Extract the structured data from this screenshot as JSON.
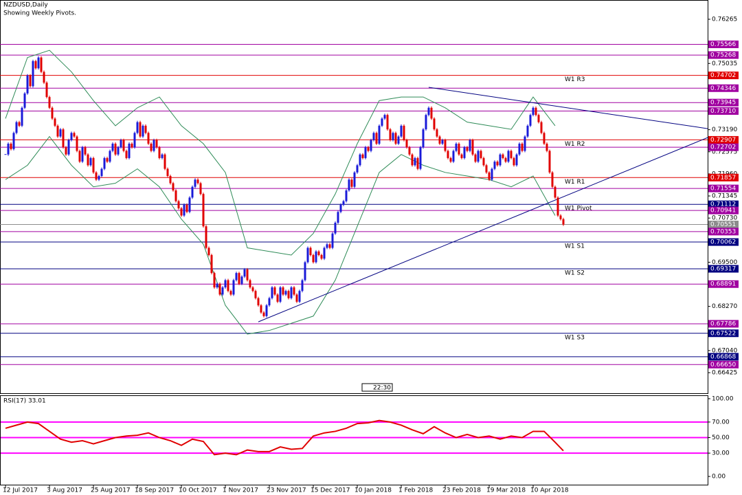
{
  "chart_data": [
    {
      "type": "candlestick",
      "title": "NZDUSD,Daily",
      "subtitle": "Showing Weekly Pivots.",
      "categories": [
        "12 Jul 2017",
        null,
        null,
        null,
        null,
        null,
        null,
        null,
        null,
        null,
        null,
        null,
        null,
        null,
        null,
        null,
        "3 Aug 2017",
        null,
        null,
        null,
        null,
        null,
        null,
        null,
        null,
        null,
        null,
        null,
        null,
        null,
        null,
        null,
        "25 Aug 2017",
        null,
        null,
        null,
        null,
        null,
        null,
        null,
        null,
        null,
        null,
        null,
        null,
        null,
        null,
        null,
        "18 Sep 2017",
        null,
        null,
        null,
        null,
        null,
        null,
        null,
        null,
        null,
        null,
        null,
        null,
        null,
        null,
        null,
        "10 Oct 2017",
        null,
        null,
        null,
        null,
        null,
        null,
        null,
        null,
        null,
        null,
        null,
        null,
        null,
        null,
        null,
        "1 Nov 2017",
        null,
        null,
        null,
        null,
        null,
        null,
        null,
        null,
        null,
        null,
        null,
        null,
        null,
        null,
        null,
        "23 Nov 2017",
        null,
        null,
        null,
        null,
        null,
        null,
        null,
        null,
        null,
        null,
        null,
        null,
        null,
        null,
        null,
        "15 Dec 2017",
        null,
        null,
        null,
        null,
        null,
        null,
        null,
        null,
        null,
        null,
        null,
        null,
        null,
        null,
        null,
        "10 Jan 2018",
        null,
        null,
        null,
        null,
        null,
        null,
        null,
        null,
        null,
        null,
        null,
        null,
        null,
        null,
        null,
        "1 Feb 2018",
        null,
        null,
        null,
        null,
        null,
        null,
        null,
        null,
        null,
        null,
        null,
        null,
        null,
        null,
        null,
        "23 Feb 2018",
        null,
        null,
        null,
        null,
        null,
        null,
        null,
        null,
        null,
        null,
        null,
        null,
        null,
        null,
        null,
        "19 Mar 2018",
        null,
        null,
        null,
        null,
        null,
        null,
        null,
        null,
        null,
        null,
        null,
        null,
        null,
        null,
        null,
        "10 Apr 2018",
        null,
        null,
        null,
        null,
        null,
        null,
        null,
        null,
        null,
        null,
        null
      ],
      "values": [
        0.725,
        0.728,
        0.7265,
        0.731,
        0.734,
        0.733,
        0.738,
        0.742,
        0.747,
        0.744,
        0.751,
        0.749,
        0.752,
        0.748,
        0.745,
        0.741,
        0.738,
        0.735,
        0.733,
        0.73,
        0.732,
        0.727,
        0.725,
        0.729,
        0.731,
        0.73,
        0.726,
        0.723,
        0.727,
        0.725,
        0.722,
        0.724,
        0.72,
        0.718,
        0.719,
        0.721,
        0.724,
        0.723,
        0.726,
        0.728,
        0.725,
        0.727,
        0.729,
        0.726,
        0.724,
        0.728,
        0.727,
        0.731,
        0.734,
        0.73,
        0.733,
        0.731,
        0.728,
        0.726,
        0.729,
        0.727,
        0.724,
        0.725,
        0.721,
        0.719,
        0.717,
        0.715,
        0.712,
        0.71,
        0.708,
        0.711,
        0.709,
        0.713,
        0.716,
        0.718,
        0.717,
        0.714,
        0.705,
        0.699,
        0.697,
        0.692,
        0.688,
        0.689,
        0.686,
        0.688,
        0.69,
        0.687,
        0.686,
        0.69,
        0.692,
        0.689,
        0.691,
        0.693,
        0.69,
        0.688,
        0.687,
        0.685,
        0.683,
        0.681,
        0.68,
        0.683,
        0.685,
        0.688,
        0.686,
        0.684,
        0.688,
        0.686,
        0.687,
        0.685,
        0.688,
        0.686,
        0.684,
        0.687,
        0.69,
        0.695,
        0.699,
        0.697,
        0.695,
        0.698,
        0.697,
        0.696,
        0.699,
        0.7,
        0.699,
        0.703,
        0.706,
        0.709,
        0.711,
        0.712,
        0.715,
        0.718,
        0.716,
        0.72,
        0.722,
        0.725,
        0.724,
        0.727,
        0.726,
        0.729,
        0.731,
        0.728,
        0.733,
        0.735,
        0.736,
        0.732,
        0.729,
        0.731,
        0.728,
        0.73,
        0.733,
        0.729,
        0.727,
        0.725,
        0.722,
        0.724,
        0.721,
        0.727,
        0.732,
        0.736,
        0.738,
        0.735,
        0.732,
        0.73,
        0.728,
        0.729,
        0.726,
        0.724,
        0.723,
        0.726,
        0.728,
        0.725,
        0.724,
        0.727,
        0.726,
        0.729,
        0.725,
        0.723,
        0.726,
        0.724,
        0.722,
        0.72,
        0.718,
        0.721,
        0.723,
        0.722,
        0.725,
        0.724,
        0.723,
        0.726,
        0.724,
        0.722,
        0.725,
        0.728,
        0.726,
        0.73,
        0.733,
        0.736,
        0.738,
        0.736,
        0.734,
        0.731,
        0.728,
        0.726,
        0.72,
        0.716,
        0.713,
        0.708,
        0.707,
        0.7055
      ],
      "up_color": "#1a1ad8",
      "down_color": "#e00000",
      "bands": {
        "color": "#2e8b57",
        "x": [
          0,
          8,
          16,
          24,
          32,
          40,
          48,
          56,
          64,
          72,
          80,
          88,
          96,
          104,
          112,
          120,
          128,
          136,
          144,
          152,
          160,
          168,
          176,
          184,
          192,
          200
        ],
        "upper": [
          0.735,
          0.752,
          0.754,
          0.748,
          0.74,
          0.733,
          0.738,
          0.741,
          0.733,
          0.728,
          0.72,
          0.699,
          0.698,
          0.697,
          0.703,
          0.714,
          0.728,
          0.74,
          0.741,
          0.741,
          0.738,
          0.734,
          0.733,
          0.732,
          0.741,
          0.733
        ],
        "lower": [
          0.718,
          0.722,
          0.73,
          0.722,
          0.716,
          0.717,
          0.721,
          0.716,
          0.707,
          0.7,
          0.683,
          0.675,
          0.676,
          0.678,
          0.68,
          0.69,
          0.705,
          0.72,
          0.725,
          0.722,
          0.72,
          0.719,
          0.718,
          0.716,
          0.719,
          0.708
        ]
      },
      "trendlines": [
        {
          "color": "#000080",
          "x": [
            154,
            255.5
          ],
          "y": [
            0.7437,
            0.7322
          ]
        },
        {
          "color": "#000080",
          "x": [
            92,
            255.5
          ],
          "y": [
            0.6784,
            0.7297
          ]
        }
      ],
      "levels": [
        {
          "value": 0.75566,
          "label": "0.75566",
          "color": "#a000a0"
        },
        {
          "value": 0.75268,
          "label": "0.75268",
          "color": "#a000a0"
        },
        {
          "value": 0.74702,
          "label": "0.74702",
          "color": "#e00000",
          "name": "W1  R3"
        },
        {
          "value": 0.74346,
          "label": "0.74346",
          "color": "#a000a0"
        },
        {
          "value": 0.73945,
          "label": "0.73945",
          "color": "#a000a0"
        },
        {
          "value": 0.7371,
          "label": "0.73710",
          "color": "#a000a0"
        },
        {
          "value": 0.72907,
          "label": "0.72907",
          "color": "#e00000",
          "name": "W1  R2"
        },
        {
          "value": 0.72702,
          "label": "0.72702",
          "color": "#a000a0"
        },
        {
          "value": 0.71857,
          "label": "0.71857",
          "color": "#e00000",
          "name": "W1  R1"
        },
        {
          "value": 0.71554,
          "label": "0.71554",
          "color": "#a000a0"
        },
        {
          "value": 0.71112,
          "label": "0.71112",
          "color": "#000080",
          "name": "W1  Pivot"
        },
        {
          "value": 0.70941,
          "label": "0.70941",
          "color": "#a000a0"
        },
        {
          "value": 0.70551,
          "label": "0.70551",
          "color": "#8c8c8c"
        },
        {
          "value": 0.70353,
          "label": "0.70353",
          "color": "#a000a0"
        },
        {
          "value": 0.70062,
          "label": "0.70062",
          "color": "#000080",
          "name": "W1  S1"
        },
        {
          "value": 0.69317,
          "label": "0.69317",
          "color": "#000080",
          "name": "W1  S2"
        },
        {
          "value": 0.68891,
          "label": "0.68891",
          "color": "#a000a0"
        },
        {
          "value": 0.67786,
          "label": "0.67786",
          "color": "#a000a0"
        },
        {
          "value": 0.67522,
          "label": "0.67522",
          "color": "#000080",
          "name": "W1  S3"
        },
        {
          "value": 0.66868,
          "label": "0.66868",
          "color": "#000080"
        },
        {
          "value": 0.6665,
          "label": "0.66650",
          "color": "#a000a0"
        }
      ],
      "ylim": [
        0.65852,
        0.76801
      ],
      "yticks": [
        0.76265,
        0.75035,
        {
          "value": 0.7319,
          "label": "0.73190"
        },
        0.72575,
        {
          "value": 0.7196,
          "label": "0.71960"
        },
        0.71345,
        {
          "value": 0.7073,
          "label": "0.70730"
        },
        {
          "value": 0.695,
          "label": "0.69500"
        },
        {
          "value": 0.6827,
          "label": "0.68270"
        },
        {
          "value": 0.6704,
          "label": "0.67040"
        },
        0.66425
      ],
      "time_label": "22:30"
    },
    {
      "type": "line",
      "title": "RSI(17) 33.01",
      "color": "#e00000",
      "x": [
        0,
        4,
        8,
        12,
        16,
        20,
        24,
        28,
        32,
        36,
        40,
        44,
        48,
        52,
        56,
        60,
        64,
        68,
        72,
        76,
        80,
        84,
        88,
        92,
        96,
        100,
        104,
        108,
        112,
        116,
        120,
        124,
        128,
        132,
        136,
        140,
        144,
        148,
        152,
        156,
        160,
        164,
        168,
        172,
        176,
        180,
        184,
        188,
        192,
        196,
        200,
        203
      ],
      "values": [
        62,
        66,
        70,
        68,
        58,
        48,
        44,
        46,
        42,
        46,
        50,
        52,
        53,
        56,
        50,
        46,
        40,
        48,
        45,
        28,
        30,
        28,
        34,
        32,
        32,
        38,
        35,
        36,
        52,
        56,
        58,
        62,
        68,
        69,
        72,
        70,
        66,
        60,
        55,
        64,
        56,
        50,
        54,
        50,
        52,
        48,
        52,
        50,
        58,
        58,
        44,
        33.01
      ],
      "levels": [
        30,
        50,
        70
      ],
      "level_color": "#ff00ff",
      "ylim": [
        -10.6,
        103.5
      ],
      "yticks": [
        {
          "value": 100,
          "label": "100.00"
        },
        {
          "value": 70,
          "label": "70.00"
        },
        {
          "value": 50,
          "label": "50.00"
        },
        {
          "value": 30,
          "label": "30.00"
        },
        {
          "value": 0,
          "label": "0.00"
        }
      ]
    }
  ]
}
